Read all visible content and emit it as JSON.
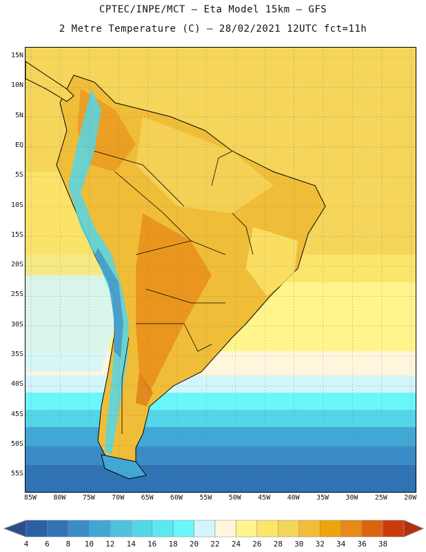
{
  "header": {
    "line1": "CPTEC/INPE/MCT –  Eta Model 15km – GFS",
    "line2": "2 Metre Temperature (C) – 28/02/2021 12UTC fct=11h"
  },
  "axes": {
    "lat_labels": [
      "15N",
      "10N",
      "5N",
      "EQ",
      "5S",
      "10S",
      "15S",
      "20S",
      "25S",
      "30S",
      "35S",
      "40S",
      "45S",
      "50S",
      "55S"
    ],
    "lon_labels": [
      "85W",
      "80W",
      "75W",
      "70W",
      "65W",
      "60W",
      "55W",
      "50W",
      "45W",
      "40W",
      "35W",
      "30W",
      "25W",
      "20W"
    ]
  },
  "colorbar": {
    "ticks": [
      "4",
      "6",
      "8",
      "10",
      "12",
      "14",
      "16",
      "18",
      "20",
      "22",
      "24",
      "26",
      "28",
      "30",
      "32",
      "34",
      "36",
      "38"
    ],
    "colors": [
      "#2b5fa6",
      "#2f73b4",
      "#3a8cc7",
      "#41a8d6",
      "#4fc2e0",
      "#55d6e8",
      "#5ce8f0",
      "#6af6fa",
      "#d2f6fc",
      "#fff6dc",
      "#fff58c",
      "#fbe66b",
      "#f5d55a",
      "#f0bd38",
      "#f0a40c",
      "#e88a16",
      "#dc6410",
      "#c83c0a"
    ],
    "under_color": "#2a4e8c",
    "over_color": "#b42e0a"
  },
  "chart_data": {
    "type": "heatmap",
    "title": "2 Metre Temperature (C) – 28/02/2021 12UTC fct=11h",
    "lon_range": [
      -86,
      -20
    ],
    "lat_range": [
      -58,
      17
    ],
    "units": "C",
    "regions": [
      {
        "name": "tropical ocean / north",
        "temp_approx": 28
      },
      {
        "name": "subtropical ocean 20S-35S",
        "temp_approx": 24
      },
      {
        "name": "southern ocean 40S-50S",
        "temp_approx": 14
      },
      {
        "name": "southern ocean south of 50S",
        "temp_approx": 8
      },
      {
        "name": "Andes highlands",
        "temp_approx": 16
      },
      {
        "name": "Chaco / central interior",
        "temp_approx": 30
      }
    ]
  }
}
